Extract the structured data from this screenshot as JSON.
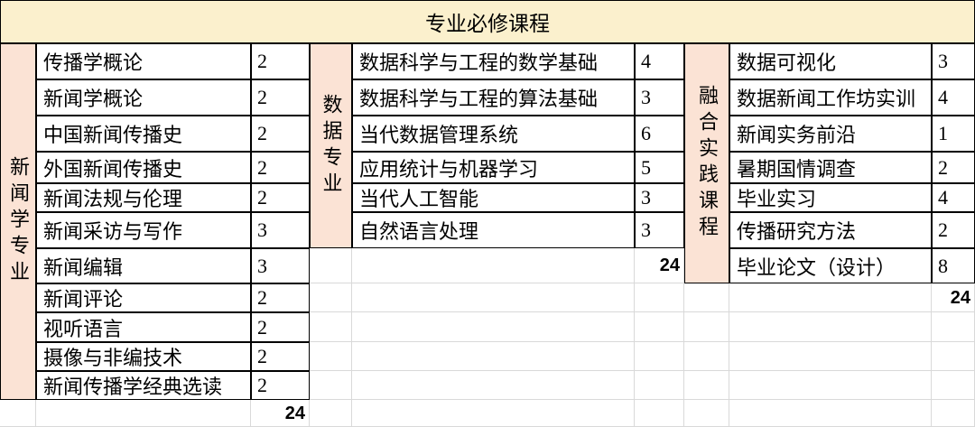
{
  "title": "专业必修课程",
  "colors": {
    "banner_bg": "#FBF0CD",
    "group_header_bg": "#FBE3D5",
    "border": "#000000",
    "gridline": "#D9D9D9"
  },
  "groups": [
    {
      "name": "新闻学专业",
      "total": "24",
      "courses": [
        {
          "name": "传播学概论",
          "credits": "2"
        },
        {
          "name": "新闻学概论",
          "credits": "2"
        },
        {
          "name": "中国新闻传播史",
          "credits": "2"
        },
        {
          "name": "外国新闻传播史",
          "credits": "2"
        },
        {
          "name": "新闻法规与伦理",
          "credits": "2"
        },
        {
          "name": "新闻采访与写作",
          "credits": "3"
        },
        {
          "name": "新闻编辑",
          "credits": "3"
        },
        {
          "name": "新闻评论",
          "credits": "2"
        },
        {
          "name": "视听语言",
          "credits": "2"
        },
        {
          "name": "摄像与非编技术",
          "credits": "2"
        },
        {
          "name": "新闻传播学经典选读",
          "credits": "2"
        }
      ]
    },
    {
      "name": "数据专业",
      "total": "24",
      "courses": [
        {
          "name": "数据科学与工程的数学基础",
          "credits": "4"
        },
        {
          "name": "数据科学与工程的算法基础",
          "credits": "3"
        },
        {
          "name": "当代数据管理系统",
          "credits": "6"
        },
        {
          "name": "应用统计与机器学习",
          "credits": "5"
        },
        {
          "name": "当代人工智能",
          "credits": "3"
        },
        {
          "name": "自然语言处理",
          "credits": "3"
        }
      ]
    },
    {
      "name": "融合实践课程",
      "total": "24",
      "courses": [
        {
          "name": "数据可视化",
          "credits": "3"
        },
        {
          "name": "数据新闻工作坊实训",
          "credits": "4"
        },
        {
          "name": "新闻实务前沿",
          "credits": "1"
        },
        {
          "name": "暑期国情调查",
          "credits": "2"
        },
        {
          "name": "毕业实习",
          "credits": "4"
        },
        {
          "name": "传播研究方法",
          "credits": "2"
        },
        {
          "name": "毕业论文（设计）",
          "credits": "8"
        }
      ]
    }
  ]
}
